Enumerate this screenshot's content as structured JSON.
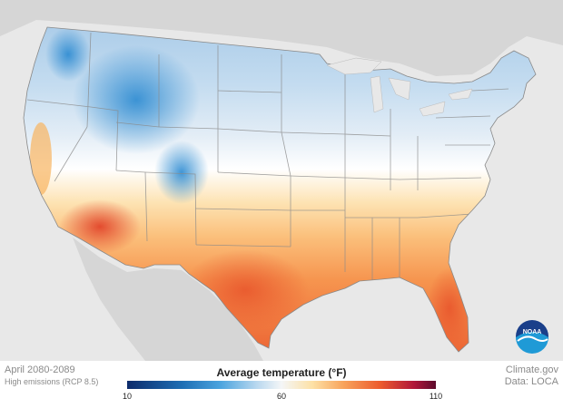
{
  "legend": {
    "title": "Average temperature (°F)",
    "ticks": [
      "10",
      "60",
      "110"
    ],
    "min": 10,
    "max": 110
  },
  "footer": {
    "period": "April 2080-2089",
    "scenario": "High emissions (RCP 8.5)",
    "credit": "Climate.gov",
    "data_source": "Data: LOCA"
  },
  "logo": {
    "text": "NOAA"
  },
  "colors": {
    "ocean": "#e8e8e8",
    "land_outside": "#d4d4d4",
    "cold": "#1e6fb5",
    "neutral": "#f4f6f7",
    "warm": "#f8a45c",
    "hot": "#ec5b2d"
  },
  "icons": [
    "noaa-logo-icon"
  ]
}
